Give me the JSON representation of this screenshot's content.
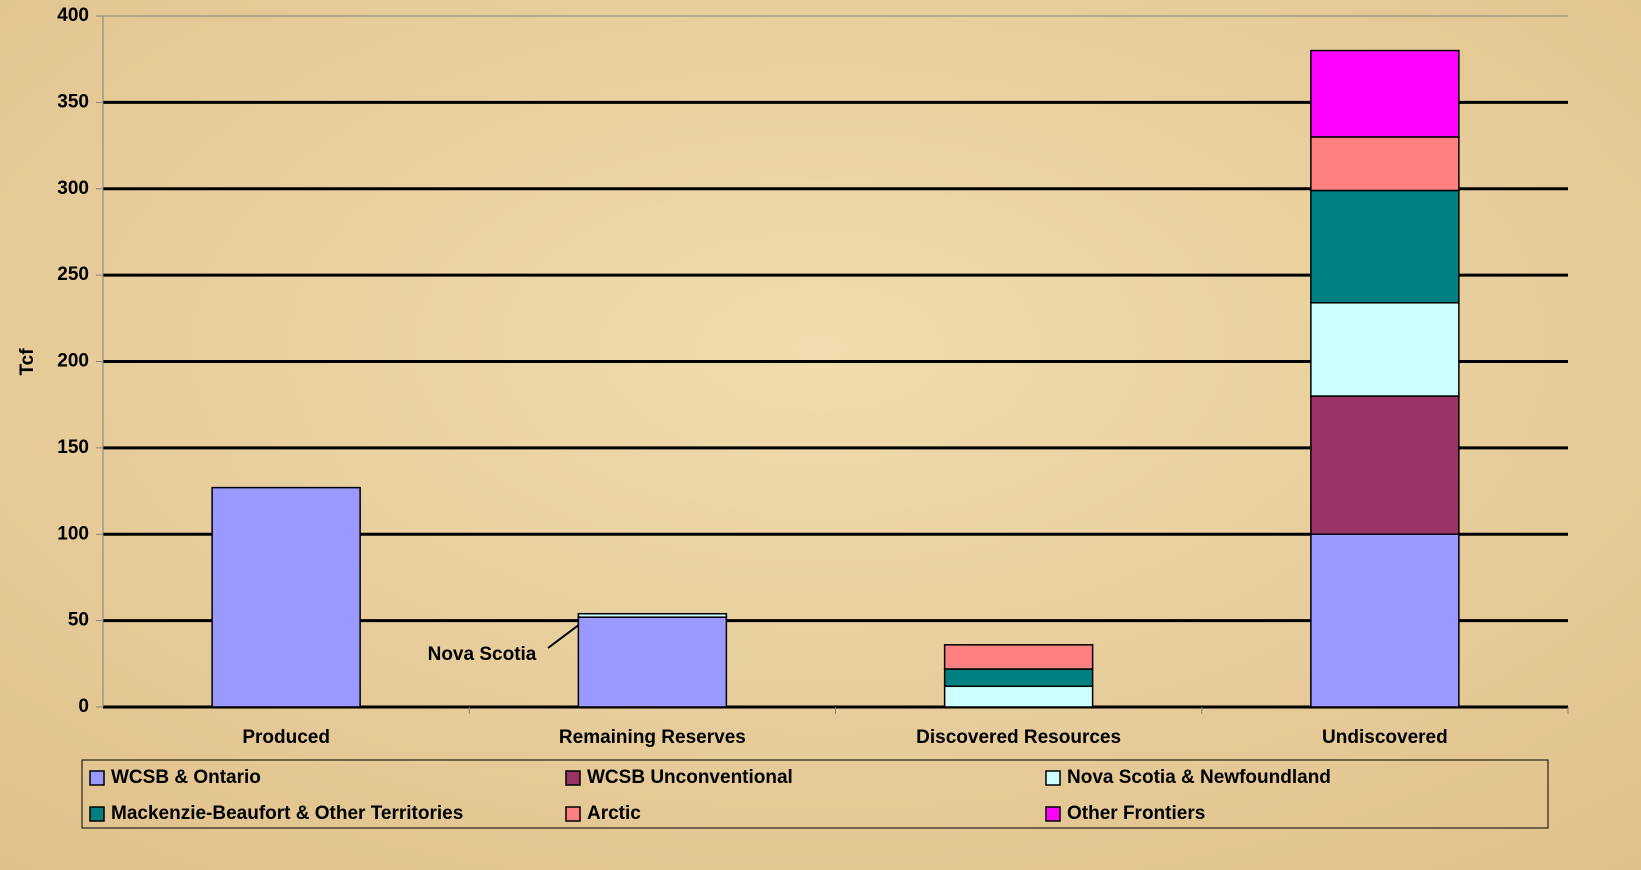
{
  "chart_data": {
    "type": "stacked_bar",
    "y_label": "Tcf",
    "categories": [
      "Produced",
      "Remaining Reserves",
      "Discovered Resources",
      "Undiscovered"
    ],
    "series": [
      {
        "name": "WCSB & Ontario",
        "color": "#9999ff",
        "values": [
          127,
          52,
          null,
          100
        ]
      },
      {
        "name": "WCSB Unconventional",
        "color": "#993366",
        "values": [
          null,
          null,
          null,
          80
        ]
      },
      {
        "name": "Nova Scotia & Newfoundland",
        "color": "#ccffff",
        "values": [
          null,
          2,
          12,
          54
        ]
      },
      {
        "name": "Mackenzie-Beaufort & Other Territories",
        "color": "#008080",
        "values": [
          null,
          null,
          10,
          65
        ]
      },
      {
        "name": "Arctic",
        "color": "#ff8080",
        "values": [
          null,
          null,
          14,
          31
        ]
      },
      {
        "name": "Other Frontiers",
        "color": "#ff00ff",
        "values": [
          null,
          null,
          null,
          50
        ]
      }
    ],
    "annotations": [
      {
        "text": "Nova Scotia"
      }
    ],
    "ylim": [
      0,
      400
    ],
    "yticks": [
      0,
      50,
      100,
      150,
      200,
      250,
      300,
      350,
      400
    ],
    "grid": true,
    "legend": "bottom"
  }
}
